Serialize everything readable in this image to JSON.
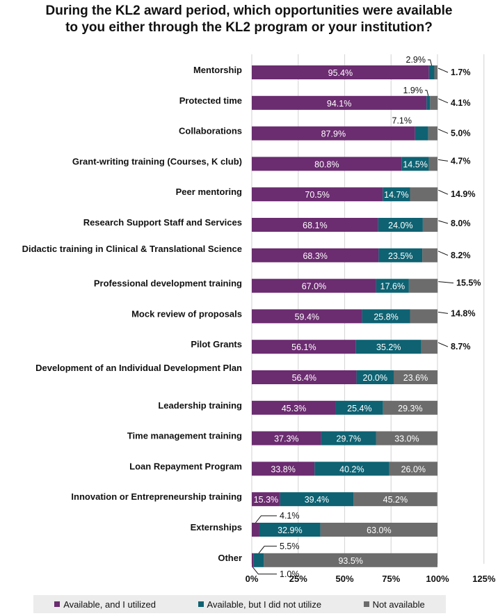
{
  "colors": {
    "utilized": "#6b2c70",
    "not_utilized": "#0e6272",
    "not_available": "#6c6c6c",
    "grid": "#d9d9d9"
  },
  "chart_data": {
    "type": "bar",
    "orientation": "horizontal",
    "stacked": true,
    "title_lines": [
      "During the KL2 award period, which opportunities were available",
      "to you either through the KL2 program or your institution?"
    ],
    "categories": [
      "Mentorship",
      "Protected time",
      "Collaborations",
      "Grant-writing training (Courses, K club)",
      "Peer mentoring",
      "Research Support Staff and Services",
      "Didactic training in Clinical & Translational Science",
      "Professional development training",
      "Mock review of proposals",
      "Pilot Grants",
      "Development of an Individual Development Plan",
      "Leadership training",
      "Time management training",
      "Loan Repayment Program",
      "Innovation or Entrepreneurship training",
      "Externships",
      "Other"
    ],
    "series": [
      {
        "name": "Available, and I utilized",
        "values": [
          95.4,
          94.1,
          87.9,
          80.8,
          70.5,
          68.1,
          68.3,
          67.0,
          59.4,
          56.1,
          56.4,
          45.3,
          37.3,
          33.8,
          15.3,
          4.1,
          1.0
        ]
      },
      {
        "name": "Available, but I did not utilize",
        "values": [
          2.9,
          1.9,
          7.1,
          14.5,
          14.7,
          24.0,
          23.5,
          17.6,
          25.8,
          35.2,
          20.0,
          25.4,
          29.7,
          40.2,
          39.4,
          32.9,
          5.5
        ]
      },
      {
        "name": "Not available",
        "values": [
          1.7,
          4.1,
          5.0,
          4.7,
          14.9,
          8.0,
          8.2,
          15.5,
          14.8,
          8.7,
          23.6,
          29.3,
          33.0,
          26.0,
          45.2,
          63.0,
          93.5
        ]
      }
    ],
    "data_labels": [
      [
        "95.4%",
        "2.9%",
        "1.7%"
      ],
      [
        "94.1%",
        "1.9%",
        "4.1%"
      ],
      [
        "87.9%",
        "7.1%",
        "5.0%"
      ],
      [
        "80.8%",
        "14.5%",
        "4.7%"
      ],
      [
        "70.5%",
        "14.7%",
        "14.9%"
      ],
      [
        "68.1%",
        "24.0%",
        "8.0%"
      ],
      [
        "68.3%",
        "23.5%",
        "8.2%"
      ],
      [
        "67.0%",
        "17.6%",
        "15.5%"
      ],
      [
        "59.4%",
        "25.8%",
        "14.8%"
      ],
      [
        "56.1%",
        "35.2%",
        "8.7%"
      ],
      [
        "56.4%",
        "20.0%",
        "23.6%"
      ],
      [
        "45.3%",
        "25.4%",
        "29.3%"
      ],
      [
        "37.3%",
        "29.7%",
        "33.0%"
      ],
      [
        "33.8%",
        "40.2%",
        "26.0%"
      ],
      [
        "15.3%",
        "39.4%",
        "45.2%"
      ],
      [
        "4.1%",
        "32.9%",
        "63.0%"
      ],
      [
        "1.0%",
        "5.5%",
        "93.5%"
      ]
    ],
    "x_ticks": [
      0,
      25,
      50,
      75,
      100,
      125
    ],
    "x_tick_labels": [
      "0%",
      "25%",
      "50%",
      "75%",
      "100%",
      "125%"
    ],
    "xlim": [
      0,
      125
    ],
    "grid": true,
    "legend_position": "bottom"
  }
}
